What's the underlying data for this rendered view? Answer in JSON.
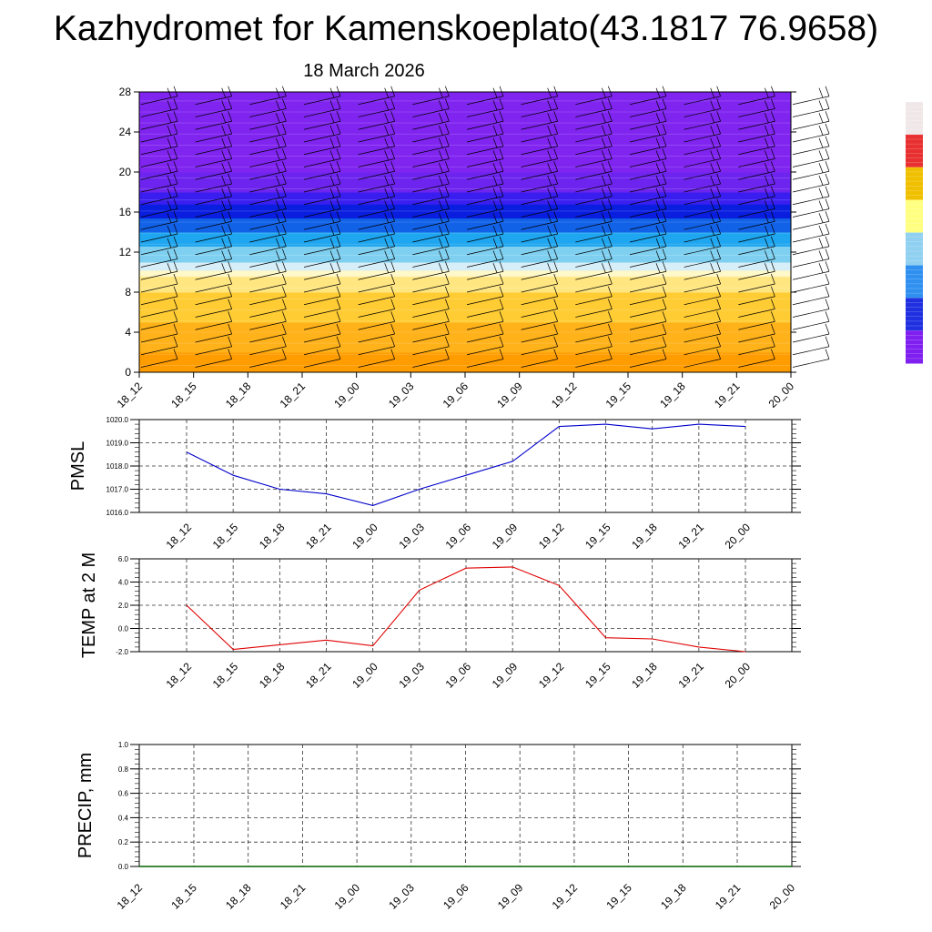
{
  "title": "Kazhydromet for Kamenskoeplato(43.1817 76.9658)",
  "subtitle": "18 March 2026",
  "colors": {
    "pmsl_line": "#0000cc",
    "temp_line": "#e00000",
    "precip_line": "#006400",
    "grid": "#333333",
    "barb": "#000000"
  },
  "chart_data": [
    {
      "type": "heatmap",
      "title": "",
      "x_labels": [
        "18_12",
        "18_15",
        "18_18",
        "18_21",
        "19_00",
        "19_03",
        "19_06",
        "19_09",
        "19_12",
        "19_15",
        "19_18",
        "19_21",
        "20_00"
      ],
      "y_ticks": [
        0,
        4,
        8,
        12,
        16,
        20,
        24,
        28
      ],
      "ylim": [
        0,
        28
      ],
      "color_bands": [
        {
          "from": 0,
          "to": 2,
          "color": "#ff9c00"
        },
        {
          "from": 2,
          "to": 5,
          "color": "#ffb21a"
        },
        {
          "from": 5,
          "to": 8,
          "color": "#ffcc33"
        },
        {
          "from": 8,
          "to": 9.6,
          "color": "#ffe680"
        },
        {
          "from": 9.6,
          "to": 10.2,
          "color": "#fff8c8"
        },
        {
          "from": 10.2,
          "to": 11,
          "color": "#d6eef8"
        },
        {
          "from": 11,
          "to": 12.6,
          "color": "#7fd0f0"
        },
        {
          "from": 12.6,
          "to": 14,
          "color": "#1fa6f0"
        },
        {
          "from": 14,
          "to": 15.4,
          "color": "#1262e8"
        },
        {
          "from": 15.4,
          "to": 16.8,
          "color": "#0a1ee0"
        },
        {
          "from": 16.8,
          "to": 18,
          "color": "#3a1ef0"
        },
        {
          "from": 18,
          "to": 20,
          "color": "#6d24ee"
        },
        {
          "from": 20,
          "to": 28,
          "color": "#8024f0"
        }
      ],
      "wind_barbs": "present",
      "colorbar": [
        "#f0e8e8",
        "#e83030",
        "#f0c000",
        "#ffff80",
        "#90d0f0",
        "#3090f0",
        "#2030e0",
        "#8020f0"
      ]
    },
    {
      "type": "line",
      "ylabel": "PMSL",
      "categories": [
        "18_12",
        "18_15",
        "18_18",
        "18_21",
        "19_00",
        "19_03",
        "19_06",
        "19_09",
        "19_12",
        "19_15",
        "19_18",
        "19_21",
        "20_00"
      ],
      "values": [
        1018.6,
        1017.6,
        1017.0,
        1016.8,
        1016.3,
        1017.0,
        1017.6,
        1018.2,
        1019.7,
        1019.8,
        1019.6,
        1019.8,
        1019.7
      ],
      "y_ticks": [
        "1016.0",
        "1017.0",
        "1018.0",
        "1019.0",
        "1020.0"
      ],
      "ylim": [
        1016.0,
        1020.0
      ]
    },
    {
      "type": "line",
      "ylabel": "TEMP at 2 M",
      "categories": [
        "18_12",
        "18_15",
        "18_18",
        "18_21",
        "19_00",
        "19_03",
        "19_06",
        "19_09",
        "19_12",
        "19_15",
        "19_18",
        "19_21",
        "20_00"
      ],
      "values": [
        2.0,
        -1.8,
        -1.4,
        -1.0,
        -1.5,
        3.3,
        5.2,
        5.3,
        3.7,
        -0.8,
        -0.9,
        -1.6,
        -2.0
      ],
      "y_ticks": [
        "-2.0",
        "0.0",
        "2.0",
        "4.0",
        "6.0"
      ],
      "ylim": [
        -2.0,
        6.0
      ]
    },
    {
      "type": "line",
      "ylabel": "PRECIP, mm",
      "categories": [
        "18_12",
        "18_15",
        "18_18",
        "18_21",
        "19_00",
        "19_03",
        "19_06",
        "19_09",
        "19_12",
        "19_15",
        "19_18",
        "19_21",
        "20_00"
      ],
      "values": [
        0,
        0,
        0,
        0,
        0,
        0,
        0,
        0,
        0,
        0,
        0,
        0,
        0
      ],
      "y_ticks": [
        "0.0",
        "0.2",
        "0.4",
        "0.6",
        "0.8",
        "1.0"
      ],
      "ylim": [
        0.0,
        1.0
      ]
    }
  ]
}
